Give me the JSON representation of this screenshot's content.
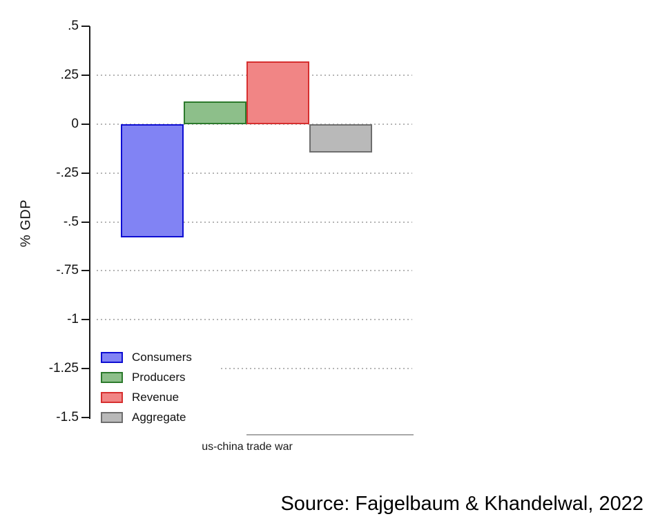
{
  "chart_data": {
    "type": "bar",
    "title": "",
    "ylabel": "% GDP",
    "xlabel": "us-china trade war",
    "ylim": [
      -1.5,
      0.5
    ],
    "yticks": [
      0.5,
      0.25,
      0,
      -0.25,
      -0.5,
      -0.75,
      -1,
      -1.25,
      -1.5
    ],
    "ytick_labels": [
      ".5",
      ".25",
      "0",
      "-.25",
      "-.5",
      "-.75",
      "-1",
      "-1.25",
      "-1.5"
    ],
    "grid": "dotted horizontal gridlines at interior ticks only",
    "legend_position": "inside bottom-left",
    "categories": [
      "us-china trade war"
    ],
    "series": [
      {
        "name": "Consumers",
        "value": -0.58,
        "fill": "#8183f4",
        "border": "#0d0dd2"
      },
      {
        "name": "Producers",
        "value": 0.115,
        "fill": "#8dbf8a",
        "border": "#2c7a2c"
      },
      {
        "name": "Revenue",
        "value": 0.32,
        "fill": "#f18585",
        "border": "#d62f2f"
      },
      {
        "name": "Aggregate",
        "value": -0.145,
        "fill": "#b9b9b9",
        "border": "#6e6e6e"
      }
    ]
  },
  "source_note": "Source: Fajgelbaum & Khandelwal, 2022"
}
